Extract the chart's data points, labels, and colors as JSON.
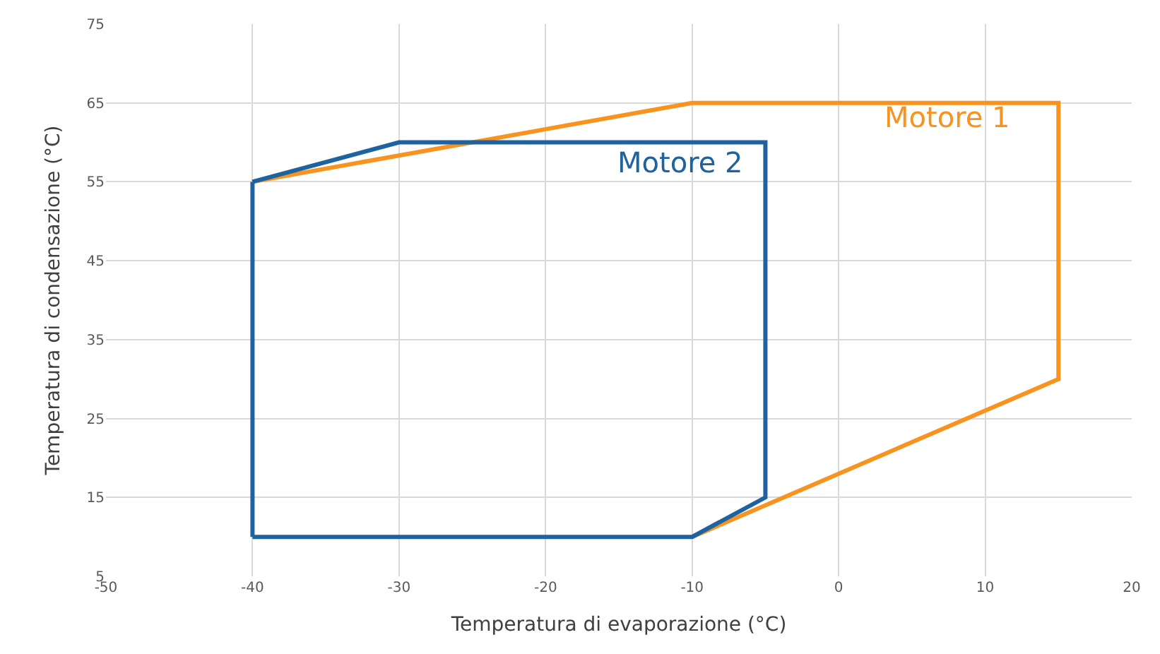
{
  "chart_data": {
    "type": "line",
    "xlabel": "Temperatura di evaporazione (°C)",
    "ylabel": "Temperatura di condensazione (°C)",
    "series": [
      {
        "name": "Motore 1",
        "color": "#f7931e",
        "x": [
          -40,
          -10,
          15,
          15,
          -10
        ],
        "values": [
          55,
          65,
          65,
          30,
          10
        ]
      },
      {
        "name": "Motore 2",
        "color": "#1f62a0",
        "x": [
          -40,
          -30,
          -5,
          -5,
          -10,
          -40
        ],
        "values": [
          55,
          60,
          60,
          15,
          10,
          10
        ]
      },
      {
        "color": "#1f62a0",
        "x": [
          -40,
          -40
        ],
        "values": [
          10,
          55
        ]
      }
    ],
    "xlim": [
      -50,
      20
    ],
    "xticks": [
      -50,
      -40,
      -30,
      -20,
      -10,
      0,
      10,
      20
    ],
    "ylim": [
      5,
      75
    ],
    "yticks": [
      5,
      15,
      25,
      35,
      45,
      55,
      65,
      75
    ],
    "grid": true,
    "legend": false,
    "marker": "none",
    "line_style": "solid"
  }
}
